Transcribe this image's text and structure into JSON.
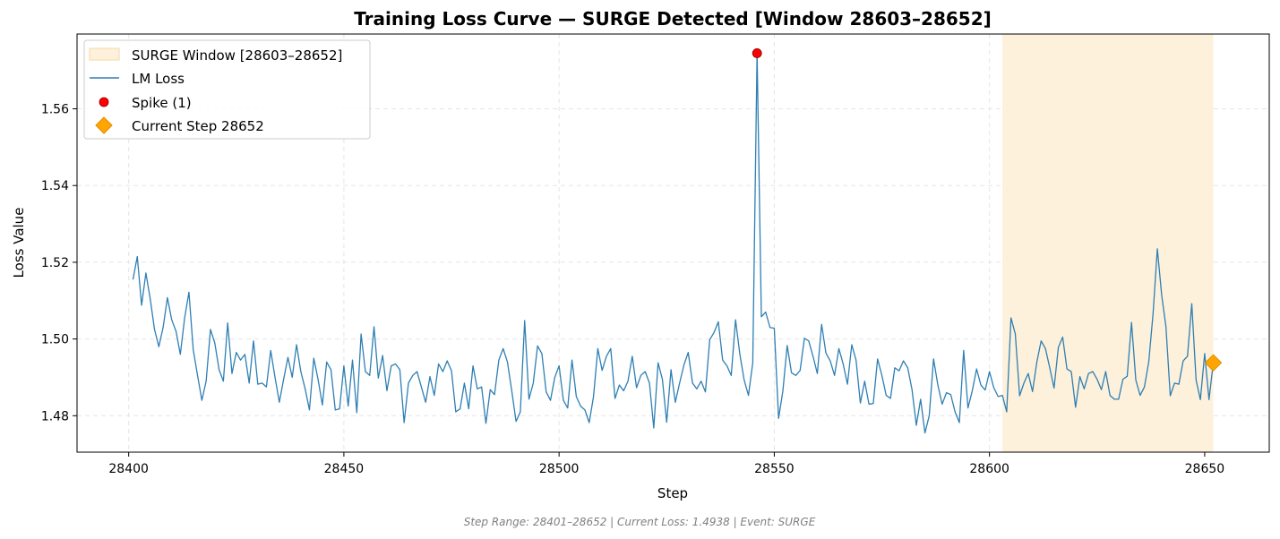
{
  "colors": {
    "line": "#2e7fb3",
    "spike": "#ff0000",
    "current": "#ffa500",
    "surge_fill": "#fdf1dc",
    "surge_edge": "#f6d9a2",
    "grid": "#e5e5e5"
  },
  "footer_text": "Step Range: 28401–28652 | Current Loss: 1.4938 | Event: SURGE",
  "chart_data": {
    "type": "line",
    "title": "Training Loss Curve — SURGE Detected [Window 28603–28652]",
    "xlabel": "Step",
    "ylabel": "Loss Value",
    "xlim": [
      28388,
      28665
    ],
    "ylim": [
      1.4705,
      1.5795
    ],
    "xticks": [
      28400,
      28450,
      28500,
      28550,
      28600,
      28650
    ],
    "yticks": [
      1.48,
      1.5,
      1.52,
      1.54,
      1.56
    ],
    "grid": true,
    "legend_placement": "top-left",
    "legend": [
      {
        "label": "SURGE Window [28603–28652]",
        "kind": "span"
      },
      {
        "label": "LM Loss",
        "kind": "line"
      },
      {
        "label": "Spike (1)",
        "kind": "dot"
      },
      {
        "label": "Current Step 28652",
        "kind": "diamond"
      }
    ],
    "surge_window": [
      28603,
      28652
    ],
    "spike": {
      "x": 28546,
      "y": 1.5745
    },
    "current": {
      "x": 28652,
      "y": 1.4938
    },
    "series": [
      {
        "name": "LM Loss",
        "x_start": 28401,
        "x_step": 1,
        "values": [
          1.5155,
          1.5215,
          1.5088,
          1.5172,
          1.5105,
          1.5025,
          1.498,
          1.503,
          1.5108,
          1.505,
          1.502,
          1.496,
          1.5055,
          1.5122,
          1.4972,
          1.4905,
          1.484,
          1.489,
          1.5025,
          1.499,
          1.492,
          1.489,
          1.5042,
          1.491,
          1.4965,
          1.4945,
          1.496,
          1.4885,
          1.4995,
          1.4882,
          1.4885,
          1.4875,
          1.497,
          1.49,
          1.4835,
          1.4895,
          1.4952,
          1.49,
          1.4985,
          1.4915,
          1.487,
          1.4815,
          1.495,
          1.4895,
          1.4828,
          1.494,
          1.492,
          1.4815,
          1.4818,
          1.493,
          1.4825,
          1.4945,
          1.4808,
          1.5013,
          1.4915,
          1.4905,
          1.5032,
          1.4898,
          1.4957,
          1.4865,
          1.493,
          1.4935,
          1.492,
          1.4782,
          1.4885,
          1.4905,
          1.4915,
          1.4875,
          1.4835,
          1.4902,
          1.4853,
          1.4935,
          1.4915,
          1.4943,
          1.4917,
          1.481,
          1.4818,
          1.4885,
          1.4818,
          1.493,
          1.487,
          1.4875,
          1.478,
          1.4868,
          1.4855,
          1.4945,
          1.4975,
          1.494,
          1.4865,
          1.4785,
          1.481,
          1.5048,
          1.4843,
          1.4885,
          1.4982,
          1.4962,
          1.4862,
          1.484,
          1.49,
          1.493,
          1.484,
          1.482,
          1.4945,
          1.485,
          1.4825,
          1.4815,
          1.4782,
          1.485,
          1.4975,
          1.4918,
          1.4955,
          1.4975,
          1.4845,
          1.488,
          1.4865,
          1.489,
          1.4955,
          1.4873,
          1.4905,
          1.4915,
          1.4885,
          1.4768,
          1.4938,
          1.4895,
          1.4783,
          1.492,
          1.4835,
          1.4885,
          1.4932,
          1.4965,
          1.4885,
          1.487,
          1.489,
          1.4862,
          1.4998,
          1.5017,
          1.5045,
          1.4945,
          1.493,
          1.4905,
          1.505,
          1.496,
          1.4893,
          1.4853,
          1.4938,
          1.5745,
          1.5058,
          1.507,
          1.503,
          1.5028,
          1.4793,
          1.4865,
          1.4983,
          1.4912,
          1.4905,
          1.4918,
          1.5002,
          1.4995,
          1.4955,
          1.491,
          1.5038,
          1.4963,
          1.4943,
          1.4905,
          1.4975,
          1.4935,
          1.4882,
          1.4985,
          1.4945,
          1.4833,
          1.489,
          1.483,
          1.4832,
          1.4948,
          1.4905,
          1.4853,
          1.4845,
          1.4925,
          1.4917,
          1.4943,
          1.4925,
          1.4868,
          1.4775,
          1.4843,
          1.4755,
          1.48,
          1.4948,
          1.488,
          1.483,
          1.486,
          1.4855,
          1.481,
          1.4782,
          1.497,
          1.482,
          1.4865,
          1.4922,
          1.488,
          1.4867,
          1.4915,
          1.4873,
          1.485,
          1.4853,
          1.481,
          1.5055,
          1.5013,
          1.4852,
          1.4885,
          1.491,
          1.4863,
          1.494,
          1.4995,
          1.4975,
          1.4925,
          1.4872,
          1.4978,
          1.5005,
          1.4922,
          1.4915,
          1.4822,
          1.4902,
          1.487,
          1.491,
          1.4915,
          1.4895,
          1.4868,
          1.4915,
          1.4853,
          1.4843,
          1.4843,
          1.4895,
          1.4903,
          1.5043,
          1.4893,
          1.4853,
          1.4875,
          1.494,
          1.5065,
          1.5235,
          1.5115,
          1.5032,
          1.4852,
          1.4885,
          1.4882,
          1.4943,
          1.4955,
          1.5092,
          1.4893,
          1.4842,
          1.4962,
          1.4842,
          1.4938
        ]
      }
    ]
  }
}
